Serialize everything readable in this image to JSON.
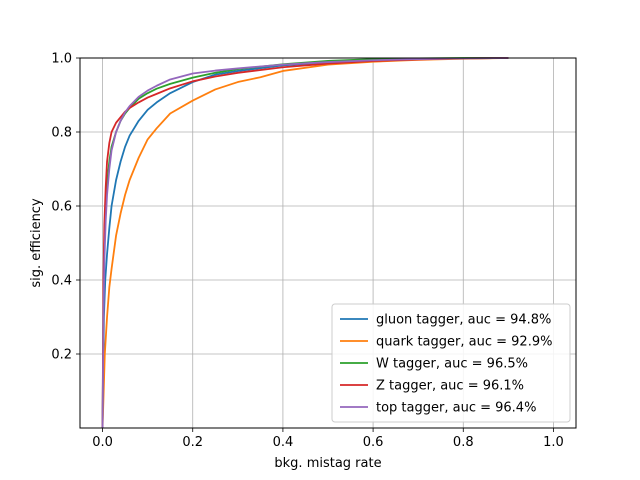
{
  "chart_data": {
    "type": "line",
    "title": "",
    "xlabel": "bkg. mistag rate",
    "ylabel": "sig. efficiency",
    "xlim": [
      -0.05,
      1.05
    ],
    "ylim": [
      0.0,
      1.0
    ],
    "xticks": [
      "0.0",
      "0.2",
      "0.4",
      "0.6",
      "0.8",
      "1.0"
    ],
    "yticks": [
      "0.2",
      "0.4",
      "0.6",
      "0.8",
      "1.0"
    ],
    "grid": true,
    "legend_position": "bottom-right",
    "series": [
      {
        "name": "gluon tagger, auc = 94.8%",
        "color": "#1f77b4",
        "x": [
          0.0,
          0.003,
          0.006,
          0.01,
          0.015,
          0.02,
          0.03,
          0.04,
          0.05,
          0.06,
          0.08,
          0.1,
          0.12,
          0.15,
          0.2,
          0.25,
          0.3,
          0.4,
          0.5,
          0.6,
          0.7,
          0.8,
          0.9
        ],
        "y": [
          0.0,
          0.3,
          0.4,
          0.47,
          0.54,
          0.6,
          0.67,
          0.72,
          0.76,
          0.79,
          0.83,
          0.86,
          0.88,
          0.905,
          0.935,
          0.955,
          0.965,
          0.98,
          0.988,
          0.994,
          0.997,
          0.999,
          1.0
        ]
      },
      {
        "name": "quark tagger, auc = 92.9%",
        "color": "#ff7f0e",
        "x": [
          0.0,
          0.005,
          0.01,
          0.015,
          0.02,
          0.03,
          0.04,
          0.05,
          0.06,
          0.08,
          0.1,
          0.12,
          0.15,
          0.2,
          0.25,
          0.3,
          0.35,
          0.4,
          0.5,
          0.6,
          0.7,
          0.8,
          0.9
        ],
        "y": [
          0.0,
          0.2,
          0.3,
          0.38,
          0.43,
          0.52,
          0.58,
          0.63,
          0.67,
          0.73,
          0.78,
          0.81,
          0.85,
          0.885,
          0.915,
          0.935,
          0.948,
          0.965,
          0.982,
          0.99,
          0.995,
          0.998,
          1.0
        ]
      },
      {
        "name": "W tagger, auc = 96.5%",
        "color": "#2ca02c",
        "x": [
          0.0,
          0.002,
          0.004,
          0.007,
          0.01,
          0.015,
          0.02,
          0.03,
          0.04,
          0.05,
          0.06,
          0.08,
          0.1,
          0.12,
          0.15,
          0.2,
          0.25,
          0.3,
          0.4,
          0.5,
          0.6,
          0.7,
          0.8,
          0.9
        ],
        "y": [
          0.0,
          0.35,
          0.5,
          0.6,
          0.66,
          0.72,
          0.76,
          0.8,
          0.83,
          0.85,
          0.865,
          0.89,
          0.905,
          0.917,
          0.93,
          0.947,
          0.96,
          0.97,
          0.983,
          0.992,
          0.997,
          0.999,
          1.0,
          1.0
        ]
      },
      {
        "name": "Z tagger, auc = 96.1%",
        "color": "#d62728",
        "x": [
          0.0,
          0.002,
          0.004,
          0.007,
          0.01,
          0.015,
          0.02,
          0.03,
          0.04,
          0.05,
          0.06,
          0.08,
          0.1,
          0.12,
          0.15,
          0.2,
          0.25,
          0.3,
          0.4,
          0.5,
          0.6,
          0.7,
          0.8,
          0.9
        ],
        "y": [
          0.0,
          0.4,
          0.55,
          0.65,
          0.72,
          0.77,
          0.8,
          0.825,
          0.84,
          0.855,
          0.865,
          0.88,
          0.893,
          0.903,
          0.918,
          0.937,
          0.95,
          0.96,
          0.975,
          0.985,
          0.992,
          0.996,
          0.999,
          1.0
        ]
      },
      {
        "name": "top tagger, auc = 96.4%",
        "color": "#9467bd",
        "x": [
          0.0,
          0.002,
          0.004,
          0.007,
          0.01,
          0.015,
          0.02,
          0.03,
          0.04,
          0.05,
          0.06,
          0.08,
          0.1,
          0.12,
          0.15,
          0.2,
          0.25,
          0.3,
          0.4,
          0.5,
          0.6,
          0.7,
          0.8,
          0.9
        ],
        "y": [
          0.0,
          0.3,
          0.45,
          0.56,
          0.63,
          0.7,
          0.75,
          0.8,
          0.83,
          0.853,
          0.87,
          0.895,
          0.912,
          0.925,
          0.942,
          0.958,
          0.966,
          0.972,
          0.982,
          0.989,
          0.994,
          0.997,
          0.999,
          1.0
        ]
      }
    ]
  }
}
